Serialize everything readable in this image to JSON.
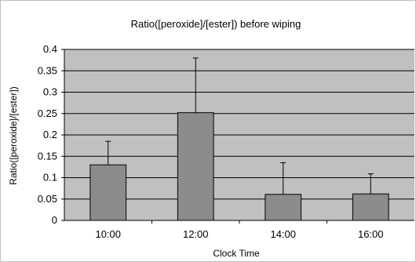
{
  "chart_data": {
    "type": "bar",
    "title": "Ratio([peroxide]/[ester]) before wiping",
    "xlabel": "Clock Time",
    "ylabel": "Ratio([peroxide]/[ester])",
    "categories": [
      "10:00",
      "12:00",
      "14:00",
      "16:00"
    ],
    "values": [
      0.13,
      0.252,
      0.061,
      0.062
    ],
    "error_upper": [
      0.055,
      0.128,
      0.074,
      0.047
    ],
    "ylim": [
      0,
      0.4
    ],
    "yticks": [
      0,
      0.05,
      0.1,
      0.15,
      0.2,
      0.25,
      0.3,
      0.35,
      0.4
    ],
    "ytick_labels": [
      "0",
      "0.05",
      "0.1",
      "0.15",
      "0.2",
      "0.25",
      "0.3",
      "0.35",
      "0.4"
    ],
    "grid": true,
    "legend": "none",
    "colors": {
      "plot_background": "#c0c0c0",
      "bar_fill": "#8c8c8c",
      "bar_stroke": "#000000",
      "gridline": "#000000"
    }
  }
}
